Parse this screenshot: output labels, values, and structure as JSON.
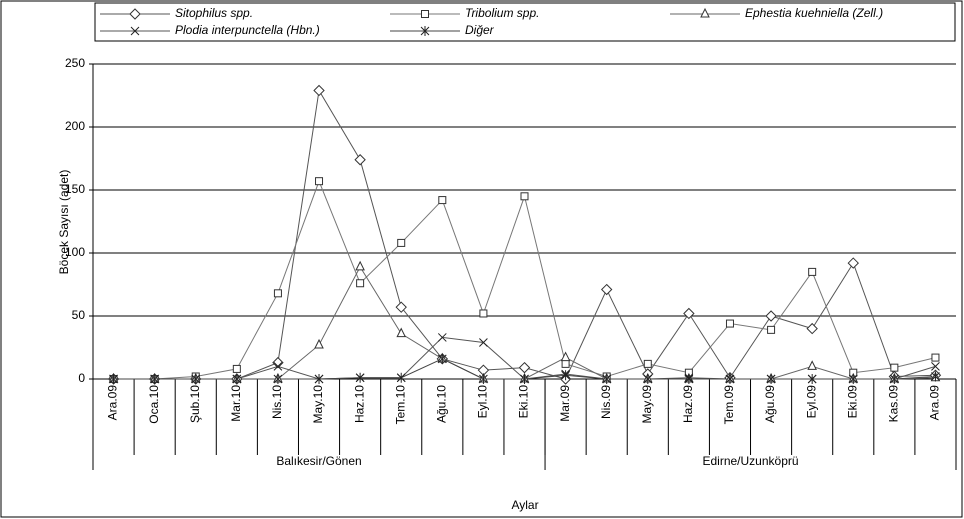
{
  "chart_data": {
    "type": "line",
    "y_label": "Böcek Sayısı (adet)",
    "x_label": "Aylar",
    "categories": [
      "Ara.09",
      "Oca.10",
      "Şub.10",
      "Mar.10",
      "Nis.10",
      "May.10",
      "Haz.10",
      "Tem.10",
      "Ağu.10",
      "Eyl.10",
      "Eki.10",
      "Mar.09",
      "Nis.09",
      "May.09",
      "Haz.09",
      "Tem.09",
      "Ağu.09",
      "Eyl.09",
      "Eki.09",
      "Kas.09",
      "Ara.09"
    ],
    "groups": [
      {
        "label": "Balıkesir/Gönen",
        "span": 11
      },
      {
        "label": "Edirne/Uzunköprü",
        "span": 10
      }
    ],
    "series": [
      {
        "name": "Sitophilus spp.",
        "color": "#555555",
        "marker": "diamond",
        "values": [
          0,
          0,
          0,
          0,
          13,
          229,
          174,
          57,
          16,
          7,
          9,
          0,
          71,
          4,
          52,
          1,
          50,
          40,
          92,
          2,
          3
        ]
      },
      {
        "name": "Tribolium spp.",
        "color": "#777777",
        "marker": "square",
        "values": [
          0,
          0,
          2,
          8,
          68,
          157,
          76,
          108,
          142,
          52,
          145,
          12,
          2,
          12,
          5,
          44,
          39,
          85,
          5,
          9,
          17
        ]
      },
      {
        "name": "Ephestia kuehniella (Zell.)",
        "color": "#666666",
        "marker": "triangle",
        "values": [
          0,
          0,
          0,
          0,
          0,
          27,
          89,
          36,
          16,
          0,
          0,
          17,
          0,
          0,
          0,
          0,
          0,
          10,
          0,
          0,
          1
        ]
      },
      {
        "name": "Plodia interpunctella (Hbn.)",
        "color": "#555555",
        "marker": "x",
        "values": [
          0,
          0,
          0,
          0,
          10,
          0,
          1,
          1,
          33,
          29,
          0,
          4,
          0,
          0,
          1,
          0,
          0,
          0,
          0,
          0,
          10
        ]
      },
      {
        "name": "Diğer",
        "color": "#444444",
        "marker": "star",
        "values": [
          0,
          0,
          0,
          0,
          0,
          0,
          1,
          1,
          16,
          0,
          0,
          3,
          0,
          0,
          0,
          0,
          0,
          0,
          0,
          0,
          2
        ]
      }
    ],
    "ylim": [
      0,
      250
    ],
    "yticks": [
      0,
      50,
      100,
      150,
      200,
      250
    ],
    "grid": true,
    "legend": "top"
  }
}
